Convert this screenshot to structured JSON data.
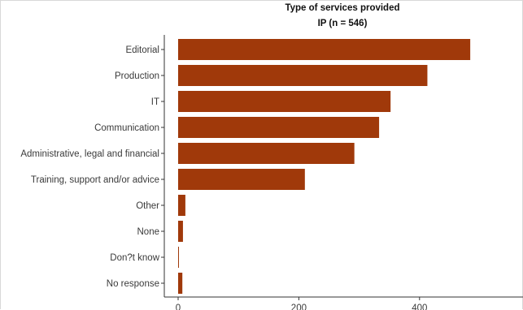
{
  "chart_data": {
    "type": "bar",
    "orientation": "horizontal",
    "title": "Type of services provided",
    "subtitle": "IP (n = 546)",
    "xlabel": "",
    "ylabel": "",
    "categories": [
      "Editorial",
      "Production",
      "IT",
      "Communication",
      "Administrative, legal and financial",
      "Training, support and/or advice",
      "Other",
      "None",
      "Don?t know",
      "No response"
    ],
    "values": [
      484,
      413,
      352,
      333,
      292,
      210,
      12,
      8,
      1,
      7
    ],
    "xlim": [
      0,
      520
    ],
    "xticks": [
      0,
      200,
      400
    ],
    "bar_color": "#a0390a",
    "grid": false,
    "legend": "none"
  }
}
